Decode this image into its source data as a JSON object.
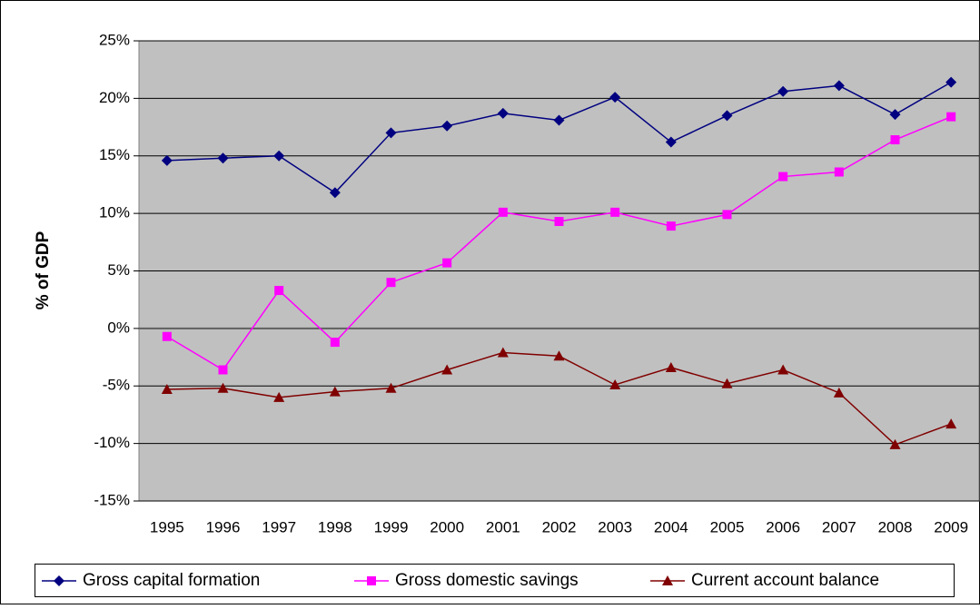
{
  "chart_data": {
    "type": "line",
    "y_label": "% of GDP",
    "categories": [
      "1995",
      "1996",
      "1997",
      "1998",
      "1999",
      "2000",
      "2001",
      "2002",
      "2003",
      "2004",
      "2005",
      "2006",
      "2007",
      "2008",
      "2009"
    ],
    "series": [
      {
        "name": "Gross capital formation",
        "color": "#000080",
        "marker": "diamond",
        "values": [
          14.6,
          14.8,
          15.0,
          11.8,
          17.0,
          17.6,
          18.7,
          18.1,
          20.1,
          16.2,
          18.5,
          20.6,
          21.1,
          18.6,
          21.4
        ]
      },
      {
        "name": "Gross domestic savings",
        "color": "#ff00ff",
        "marker": "square",
        "values": [
          -0.7,
          -3.6,
          3.3,
          -1.2,
          4.0,
          5.7,
          10.1,
          9.3,
          10.1,
          8.9,
          9.9,
          13.2,
          13.6,
          16.4,
          18.4
        ]
      },
      {
        "name": "Current account balance",
        "color": "#800000",
        "marker": "triangle",
        "values": [
          -5.3,
          -5.2,
          -6.0,
          -5.5,
          -5.2,
          -3.6,
          -2.1,
          -2.4,
          -4.9,
          -3.4,
          -4.8,
          -3.6,
          -5.6,
          -10.1,
          -8.3
        ]
      }
    ],
    "ylim": [
      -15,
      25
    ],
    "yticks": [
      {
        "value": -15,
        "label": "-15%"
      },
      {
        "value": -10,
        "label": "-10%"
      },
      {
        "value": -5,
        "label": "-5%"
      },
      {
        "value": 0,
        "label": "0%"
      },
      {
        "value": 5,
        "label": "5%"
      },
      {
        "value": 10,
        "label": "10%"
      },
      {
        "value": 15,
        "label": "15%"
      },
      {
        "value": 20,
        "label": "20%"
      },
      {
        "value": 25,
        "label": "25%"
      }
    ],
    "grid": true,
    "legend": "bottom"
  }
}
